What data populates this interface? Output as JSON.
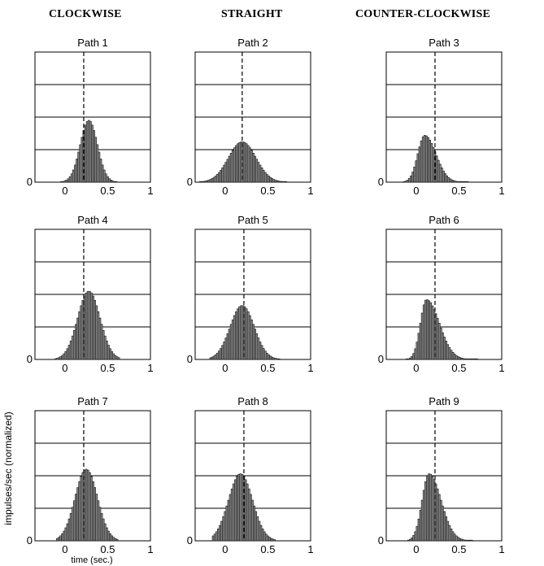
{
  "columns": [
    "CLOCKWISE",
    "STRAIGHT",
    "COUNTER-CLOCKWISE"
  ],
  "ylabel": "impulses/sec (normalized)",
  "xlabel": "time (sec.)",
  "chart_data": [
    {
      "type": "bar",
      "title": "Path 1",
      "column": "CLOCKWISE",
      "xlim": [
        -0.35,
        1.0
      ],
      "xticks": [
        0,
        0.5,
        1
      ],
      "xtick_labels": [
        "0",
        "0.5",
        "1"
      ],
      "yticks": [
        0
      ],
      "ytick_labels": [
        "0"
      ],
      "ylim": [
        0,
        2.0
      ],
      "gridlines_y": [
        0.5,
        1.0,
        1.5
      ],
      "marker_x": 0.22,
      "curve": {
        "peak_x": 0.28,
        "peak_y": 0.95,
        "sigma_left": 0.1,
        "sigma_right": 0.1,
        "start_x": -0.05,
        "end_x": 0.6
      }
    },
    {
      "type": "bar",
      "title": "Path 2",
      "column": "STRAIGHT",
      "xlim": [
        -0.35,
        1.0
      ],
      "xticks": [
        0,
        0.5,
        1
      ],
      "xtick_labels": [
        "0",
        "0.5",
        "1"
      ],
      "yticks": [
        0
      ],
      "ytick_labels": [
        "0"
      ],
      "ylim": [
        0,
        2.0
      ],
      "gridlines_y": [
        0.5,
        1.0,
        1.5
      ],
      "marker_x": 0.2,
      "curve": {
        "peak_x": 0.2,
        "peak_y": 0.62,
        "sigma_left": 0.16,
        "sigma_right": 0.16,
        "start_x": -0.3,
        "end_x": 0.7
      }
    },
    {
      "type": "bar",
      "title": "Path 3",
      "column": "COUNTER-CLOCKWISE",
      "xlim": [
        -0.35,
        1.0
      ],
      "xticks": [
        0,
        0.5,
        1
      ],
      "xtick_labels": [
        "0",
        "0.5",
        "1"
      ],
      "yticks": [
        0
      ],
      "ytick_labels": [
        "0"
      ],
      "ylim": [
        0,
        2.0
      ],
      "gridlines_y": [
        0.5,
        1.0,
        1.5
      ],
      "marker_x": 0.22,
      "curve": {
        "peak_x": 0.1,
        "peak_y": 0.72,
        "sigma_left": 0.08,
        "sigma_right": 0.13,
        "start_x": -0.15,
        "end_x": 0.6
      }
    },
    {
      "type": "bar",
      "title": "Path 4",
      "column": "CLOCKWISE",
      "xlim": [
        -0.35,
        1.0
      ],
      "xticks": [
        0,
        0.5,
        1
      ],
      "xtick_labels": [
        "0",
        "0.5",
        "1"
      ],
      "yticks": [
        0
      ],
      "ytick_labels": [
        "0"
      ],
      "ylim": [
        0,
        2.0
      ],
      "gridlines_y": [
        0.5,
        1.0,
        1.5
      ],
      "marker_x": 0.22,
      "curve": {
        "peak_x": 0.28,
        "peak_y": 1.05,
        "sigma_left": 0.13,
        "sigma_right": 0.13,
        "start_x": -0.12,
        "end_x": 0.62
      }
    },
    {
      "type": "bar",
      "title": "Path 5",
      "column": "STRAIGHT",
      "xlim": [
        -0.35,
        1.0
      ],
      "xticks": [
        0,
        0.5,
        1
      ],
      "xtick_labels": [
        "0",
        "0.5",
        "1"
      ],
      "yticks": [
        0
      ],
      "ytick_labels": [
        "0"
      ],
      "ylim": [
        0,
        2.0
      ],
      "gridlines_y": [
        0.5,
        1.0,
        1.5
      ],
      "marker_x": 0.22,
      "curve": {
        "peak_x": 0.2,
        "peak_y": 0.83,
        "sigma_left": 0.14,
        "sigma_right": 0.14,
        "start_x": -0.18,
        "end_x": 0.62
      }
    },
    {
      "type": "bar",
      "title": "Path 6",
      "column": "COUNTER-CLOCKWISE",
      "xlim": [
        -0.35,
        1.0
      ],
      "xticks": [
        0,
        0.5,
        1
      ],
      "xtick_labels": [
        "0",
        "0.5",
        "1"
      ],
      "yticks": [
        0
      ],
      "ytick_labels": [
        "0"
      ],
      "ylim": [
        0,
        2.0
      ],
      "gridlines_y": [
        0.5,
        1.0,
        1.5
      ],
      "marker_x": 0.22,
      "curve": {
        "peak_x": 0.12,
        "peak_y": 0.92,
        "sigma_left": 0.07,
        "sigma_right": 0.15,
        "start_x": -0.12,
        "end_x": 0.7
      }
    },
    {
      "type": "bar",
      "title": "Path 7",
      "column": "CLOCKWISE",
      "xlim": [
        -0.35,
        1.0
      ],
      "xticks": [
        0,
        0.5,
        1
      ],
      "xtick_labels": [
        "0",
        "0.5",
        "1"
      ],
      "yticks": [
        0
      ],
      "ytick_labels": [
        "0"
      ],
      "ylim": [
        0,
        2.0
      ],
      "gridlines_y": [
        0.5,
        1.0,
        1.5
      ],
      "marker_x": 0.22,
      "curve": {
        "peak_x": 0.25,
        "peak_y": 1.1,
        "sigma_left": 0.13,
        "sigma_right": 0.13,
        "start_x": -0.1,
        "end_x": 0.6
      }
    },
    {
      "type": "bar",
      "title": "Path 8",
      "column": "STRAIGHT",
      "xlim": [
        -0.35,
        1.0
      ],
      "xticks": [
        0,
        0.5,
        1
      ],
      "xtick_labels": [
        "0",
        "0.5",
        "1"
      ],
      "yticks": [
        0
      ],
      "ytick_labels": [
        "0"
      ],
      "ylim": [
        0,
        2.0
      ],
      "gridlines_y": [
        0.5,
        1.0,
        1.5
      ],
      "marker_x": 0.22,
      "curve": {
        "peak_x": 0.18,
        "peak_y": 1.03,
        "sigma_left": 0.14,
        "sigma_right": 0.14,
        "start_x": -0.15,
        "end_x": 0.58
      }
    },
    {
      "type": "bar",
      "title": "Path 9",
      "column": "COUNTER-CLOCKWISE",
      "xlim": [
        -0.35,
        1.0
      ],
      "xticks": [
        0,
        0.5,
        1
      ],
      "xtick_labels": [
        "0",
        "0.5",
        "1"
      ],
      "yticks": [
        0
      ],
      "ytick_labels": [
        "0"
      ],
      "ylim": [
        0,
        2.0
      ],
      "gridlines_y": [
        0.5,
        1.0,
        1.5
      ],
      "marker_x": 0.22,
      "curve": {
        "peak_x": 0.15,
        "peak_y": 1.03,
        "sigma_left": 0.08,
        "sigma_right": 0.14,
        "start_x": -0.1,
        "end_x": 0.65
      }
    }
  ]
}
